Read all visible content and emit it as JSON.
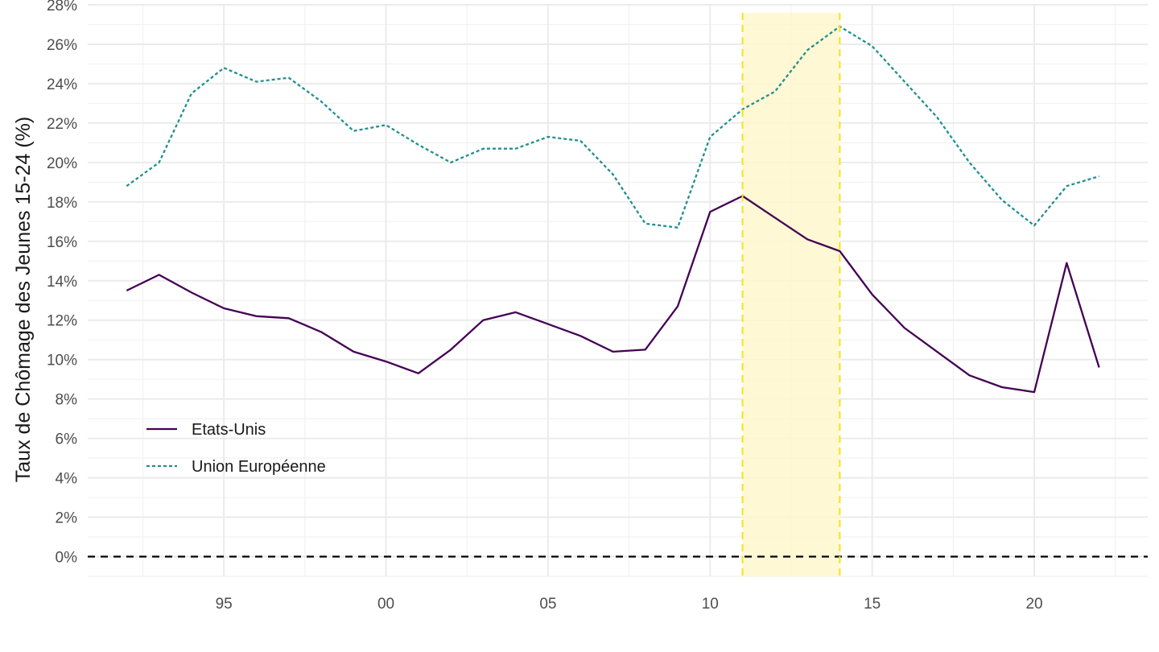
{
  "chart_data": {
    "type": "line",
    "ylabel": "Taux de Chômage des Jeunes 15-24 (%)",
    "xlabel": "",
    "x_tick_labels": [
      "95",
      "00",
      "05",
      "10",
      "15",
      "20"
    ],
    "x_ticks": [
      1995,
      2000,
      2005,
      2010,
      2015,
      2020
    ],
    "xlim": [
      1990.8,
      2023.5
    ],
    "ylim": [
      -1,
      28
    ],
    "y_ticks": [
      0,
      2,
      4,
      6,
      8,
      10,
      12,
      14,
      16,
      18,
      20,
      22,
      24,
      26,
      28
    ],
    "y_tick_labels": [
      "0%",
      "2%",
      "4%",
      "6%",
      "8%",
      "10%",
      "12%",
      "14%",
      "16%",
      "18%",
      "20%",
      "22%",
      "24%",
      "26%",
      "28%"
    ],
    "grid": true,
    "reference_line": {
      "y": 0,
      "style": "dashed",
      "color": "#000000"
    },
    "shaded_period": {
      "x_start": 2011,
      "x_end": 2014,
      "fill": "#fff7cc",
      "border": "#f5e31a"
    },
    "legend": {
      "position": "bottom-left"
    },
    "x": [
      1992,
      1993,
      1994,
      1995,
      1996,
      1997,
      1998,
      1999,
      2000,
      2001,
      2002,
      2003,
      2004,
      2005,
      2006,
      2007,
      2008,
      2009,
      2010,
      2011,
      2012,
      2013,
      2014,
      2015,
      2016,
      2017,
      2018,
      2019,
      2020,
      2021,
      2022
    ],
    "series": [
      {
        "name": "Etats-Unis",
        "color": "#440154",
        "dash": "solid",
        "values": [
          13.5,
          14.3,
          13.4,
          12.6,
          12.2,
          12.1,
          11.4,
          10.4,
          9.9,
          9.3,
          10.5,
          12.0,
          12.4,
          11.8,
          11.2,
          10.4,
          10.5,
          12.7,
          17.5,
          18.3,
          17.2,
          16.1,
          15.5,
          13.3,
          11.6,
          10.4,
          9.2,
          8.6,
          8.35,
          14.9,
          9.6
        ]
      },
      {
        "name": "Union Européenne",
        "color": "#21908c",
        "dash": "dotted",
        "values": [
          18.8,
          20.0,
          23.5,
          24.8,
          24.1,
          24.3,
          23.1,
          21.6,
          21.9,
          20.9,
          20.0,
          20.7,
          20.7,
          21.3,
          21.1,
          19.4,
          16.9,
          16.7,
          21.3,
          22.7,
          23.6,
          25.7,
          26.9,
          25.9,
          24.1,
          22.3,
          20.0,
          18.1,
          16.8,
          18.8,
          19.3
        ]
      }
    ]
  }
}
